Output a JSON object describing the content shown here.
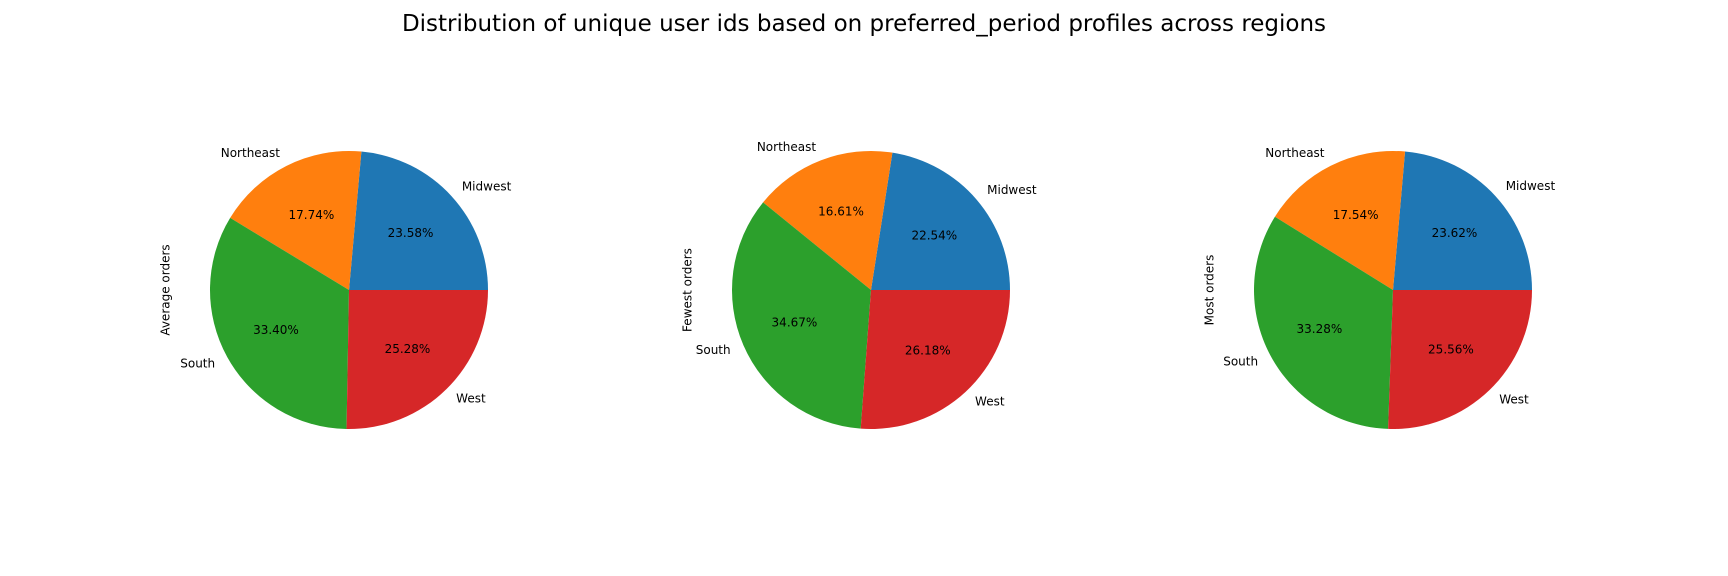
{
  "figure": {
    "title": "Distribution of unique user ids based on preferred_period profiles across regions"
  },
  "chart_data": [
    {
      "type": "pie",
      "title": "",
      "ylabel": "Average orders",
      "categories": [
        "Midwest",
        "Northeast",
        "South",
        "West"
      ],
      "values": [
        23.58,
        17.74,
        33.4,
        25.28
      ],
      "labels": [
        "23.58%",
        "17.74%",
        "33.40%",
        "25.28%"
      ],
      "colors": [
        "#1f77b4",
        "#ff7f0e",
        "#2ca02c",
        "#d62728"
      ],
      "start_angle_deg": 0,
      "direction": "counterclockwise"
    },
    {
      "type": "pie",
      "title": "",
      "ylabel": "Fewest orders",
      "categories": [
        "Midwest",
        "Northeast",
        "South",
        "West"
      ],
      "values": [
        22.54,
        16.61,
        34.67,
        26.18
      ],
      "labels": [
        "22.54%",
        "16.61%",
        "34.67%",
        "26.18%"
      ],
      "colors": [
        "#1f77b4",
        "#ff7f0e",
        "#2ca02c",
        "#d62728"
      ],
      "start_angle_deg": 0,
      "direction": "counterclockwise"
    },
    {
      "type": "pie",
      "title": "",
      "ylabel": "Most orders",
      "categories": [
        "Midwest",
        "Northeast",
        "South",
        "West"
      ],
      "values": [
        23.62,
        17.54,
        33.28,
        25.56
      ],
      "labels": [
        "23.62%",
        "17.54%",
        "33.28%",
        "25.56%"
      ],
      "colors": [
        "#1f77b4",
        "#ff7f0e",
        "#2ca02c",
        "#d62728"
      ],
      "start_angle_deg": 0,
      "direction": "counterclockwise"
    }
  ]
}
